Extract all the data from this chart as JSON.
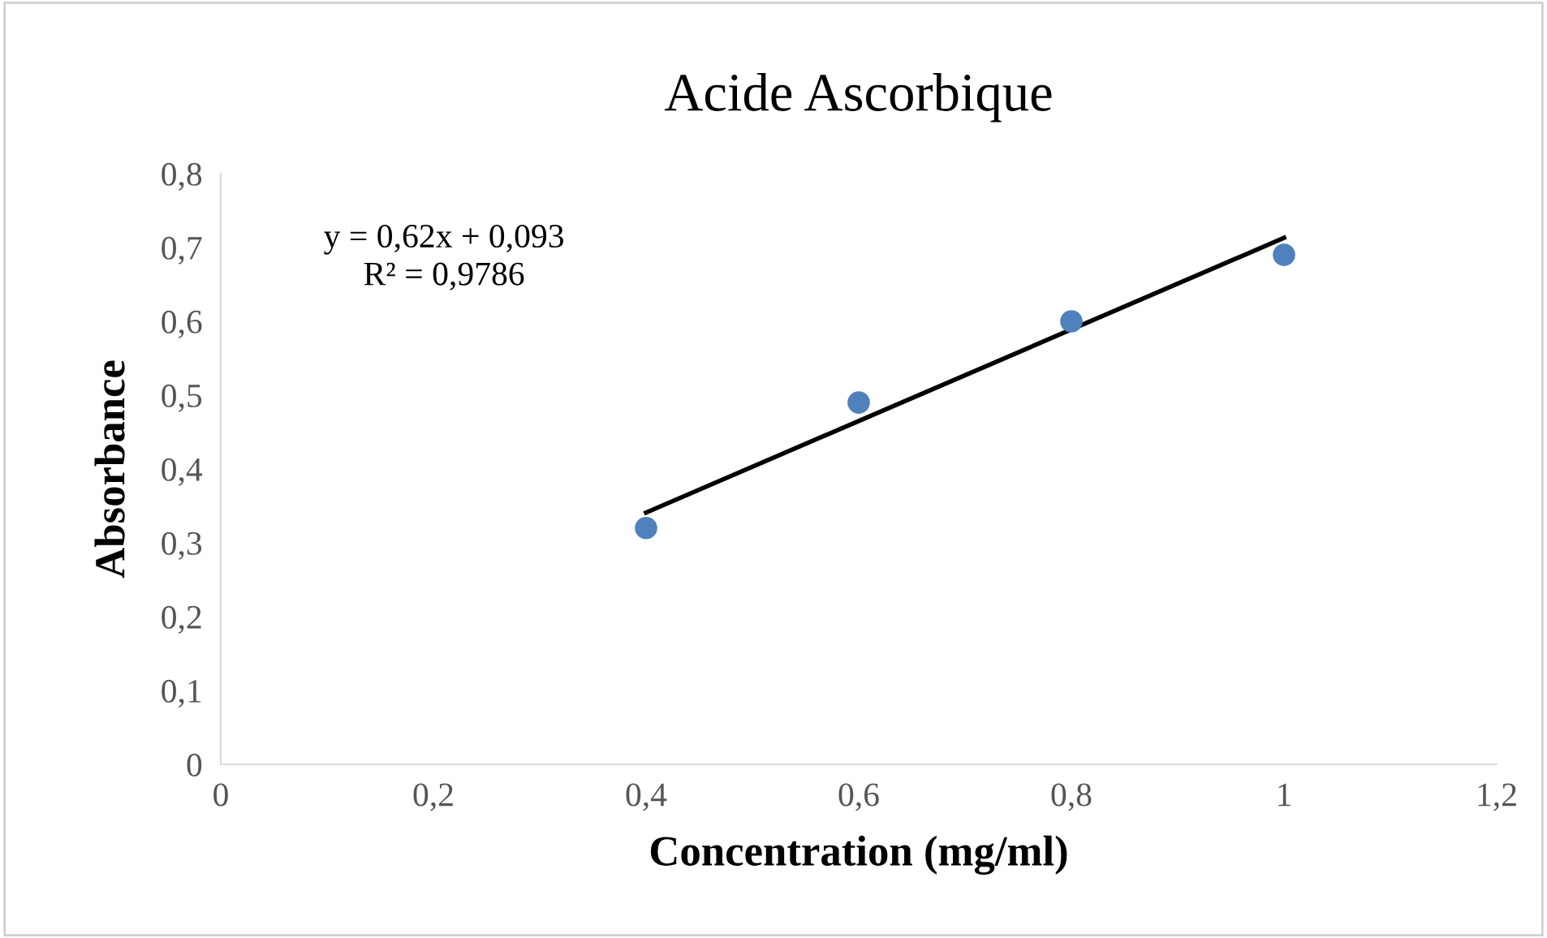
{
  "chart_data": {
    "type": "scatter",
    "title": "Acide Ascorbique",
    "xlabel": "Concentration (mg/ml)",
    "ylabel": "Absorbance",
    "x": [
      0.4,
      0.6,
      0.8,
      1.0
    ],
    "series": [
      {
        "color": "#4f81bd",
        "values": [
          0.32,
          0.49,
          0.6,
          0.69
        ],
        "marker": "circle"
      },
      {
        "type": "line",
        "color": "#000000",
        "x": [
          0.4,
          1.0
        ],
        "values": [
          0.341,
          0.713
        ],
        "marker": "none",
        "line_style": "solid"
      }
    ],
    "annotations": [
      "y = 0,62x + 0,093\nR² = 0,9786"
    ],
    "xlim": [
      0,
      1.2
    ],
    "xticks": [
      0,
      {
        "value": 0.2,
        "label": "0,2"
      },
      {
        "value": 0.4,
        "label": "0,4"
      },
      {
        "value": 0.6,
        "label": "0,6"
      },
      {
        "value": 0.8,
        "label": "0,8"
      },
      1,
      {
        "value": 1.2,
        "label": "1,2"
      }
    ],
    "ylim": [
      0,
      0.8
    ],
    "yticks": [
      0,
      {
        "value": 0.1,
        "label": "0,1"
      },
      {
        "value": 0.2,
        "label": "0,2"
      },
      {
        "value": 0.3,
        "label": "0,3"
      },
      {
        "value": 0.4,
        "label": "0,4"
      },
      {
        "value": 0.5,
        "label": "0,5"
      },
      {
        "value": 0.6,
        "label": "0,6"
      },
      {
        "value": 0.7,
        "label": "0,7"
      },
      {
        "value": 0.8,
        "label": "0,8"
      }
    ],
    "grid": false,
    "legend": false
  }
}
